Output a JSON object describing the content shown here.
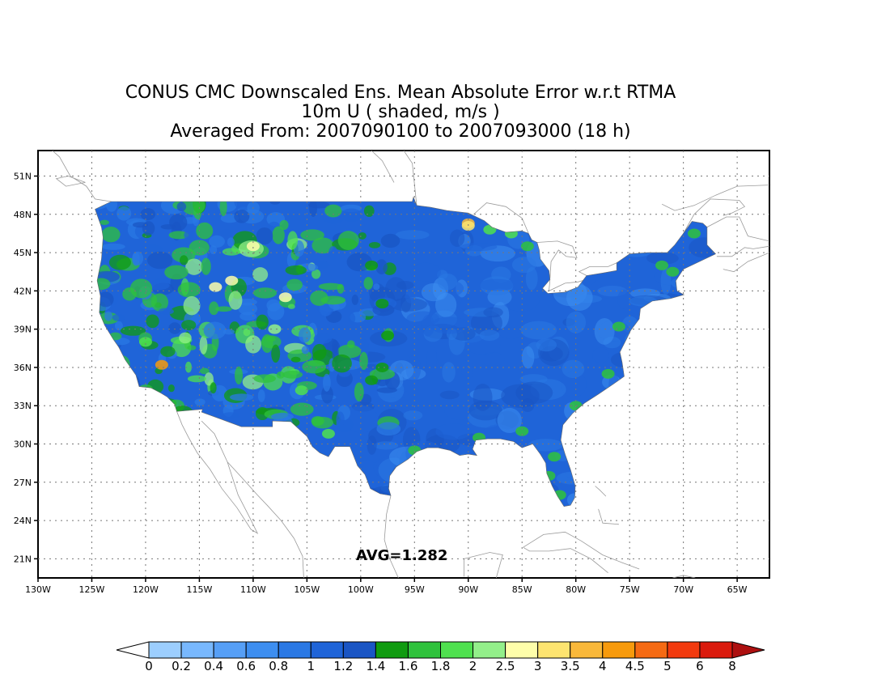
{
  "title": {
    "line1": "CONUS CMC Downscaled Ens. Mean Absolute Error w.r.t RTMA",
    "line2": "10m U ( shaded, m/s )",
    "line3": "Averaged From: 2007090100 to 2007093000 (18 h)"
  },
  "map": {
    "lon_range": [
      -130,
      -62
    ],
    "lat_range": [
      19.5,
      53
    ],
    "lon_ticks": [
      "130W",
      "125W",
      "120W",
      "115W",
      "110W",
      "105W",
      "100W",
      "95W",
      "90W",
      "85W",
      "80W",
      "75W",
      "70W",
      "65W"
    ],
    "lat_ticks": [
      "21N",
      "24N",
      "27N",
      "30N",
      "33N",
      "36N",
      "39N",
      "42N",
      "45N",
      "48N",
      "51N"
    ],
    "grid": "dotted",
    "avg_label": "AVG=1.282"
  },
  "colorbar": {
    "levels": [
      "0",
      "0.2",
      "0.4",
      "0.6",
      "0.8",
      "1",
      "1.2",
      "1.4",
      "1.6",
      "1.8",
      "2",
      "2.5",
      "3",
      "3.5",
      "4",
      "4.5",
      "5",
      "6",
      "8"
    ],
    "colors": [
      "#9ccefe",
      "#78b8fe",
      "#569ff6",
      "#3d8ef0",
      "#2a78e4",
      "#1f64d8",
      "#1a55c4",
      "#109b10",
      "#2fc23c",
      "#4fe04f",
      "#93ef8a",
      "#fefeaa",
      "#fde470",
      "#f9b83a",
      "#f79a0c",
      "#f56a13",
      "#f23a0e",
      "#da1a0d",
      "#ad1010"
    ],
    "under_color": "#ffffff",
    "over_color": "#ad1010"
  }
}
